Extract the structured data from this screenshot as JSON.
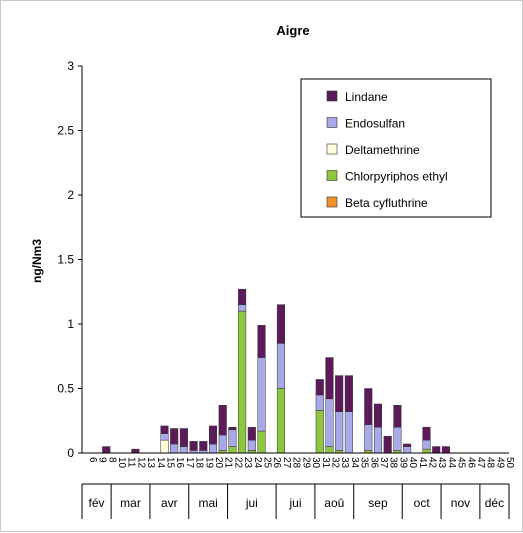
{
  "chart_data": {
    "type": "bar",
    "stacked": true,
    "title": "Aigre",
    "ylabel": "ng/Nm3",
    "xlabel": "",
    "ylim": [
      0,
      3
    ],
    "y_ticks": [
      "0",
      "0.5",
      "1",
      "1.5",
      "2",
      "2.5",
      "3"
    ],
    "grid": false,
    "legend_position": "top-right",
    "categories": [
      "6",
      "9",
      "8",
      "10",
      "11",
      "12",
      "13",
      "14",
      "15",
      "16",
      "17",
      "18",
      "19",
      "20",
      "21",
      "22",
      "23",
      "24",
      "25",
      "26",
      "27",
      "28",
      "29",
      "30",
      "31",
      "32",
      "33",
      "34",
      "35",
      "36",
      "37",
      "38",
      "39",
      "40",
      "41",
      "42",
      "43",
      "44",
      "45",
      "46",
      "47",
      "48",
      "49",
      "50"
    ],
    "months": [
      {
        "label": "fév",
        "start": 0,
        "end": 3
      },
      {
        "label": "mar",
        "start": 3,
        "end": 7
      },
      {
        "label": "avr",
        "start": 7,
        "end": 11
      },
      {
        "label": "mai",
        "start": 11,
        "end": 15
      },
      {
        "label": "jui",
        "start": 15,
        "end": 20
      },
      {
        "label": "jui",
        "start": 20,
        "end": 24
      },
      {
        "label": "aoû",
        "start": 24,
        "end": 28
      },
      {
        "label": "sep",
        "start": 28,
        "end": 33
      },
      {
        "label": "oct",
        "start": 33,
        "end": 37
      },
      {
        "label": "nov",
        "start": 37,
        "end": 41
      },
      {
        "label": "déc",
        "start": 41,
        "end": 44
      }
    ],
    "series": [
      {
        "name": "Beta cyfluthrine",
        "color": "#f0902a",
        "values": [
          0,
          0,
          0,
          0,
          0,
          0,
          0,
          0,
          0,
          0,
          0,
          0,
          0,
          0,
          0,
          0,
          0,
          0,
          0,
          0,
          0,
          0,
          0,
          0,
          0,
          0,
          0,
          0,
          0,
          0,
          0,
          0,
          0,
          0,
          0,
          0,
          0,
          0,
          0,
          0,
          0,
          0,
          0,
          0
        ]
      },
      {
        "name": "Chlorpyriphos ethyl",
        "color": "#8dc63f",
        "values": [
          0,
          0,
          0,
          0,
          0,
          0,
          0,
          0,
          0,
          0,
          0,
          0,
          0,
          0,
          0.02,
          0.05,
          1.1,
          0.02,
          0.17,
          0,
          0.5,
          0,
          0,
          0,
          0.33,
          0.05,
          0.02,
          0,
          0,
          0.02,
          0,
          0,
          0.02,
          0,
          0,
          0.03,
          0,
          0,
          0,
          0,
          0,
          0,
          0,
          0
        ]
      },
      {
        "name": "Deltamethrine",
        "color": "#ffffdd",
        "values": [
          0,
          0,
          0,
          0,
          0,
          0,
          0,
          0,
          0.1,
          0,
          0,
          0,
          0,
          0,
          0,
          0,
          0,
          0,
          0,
          0,
          0,
          0,
          0,
          0,
          0,
          0,
          0,
          0,
          0,
          0,
          0,
          0,
          0,
          0,
          0,
          0,
          0,
          0,
          0,
          0,
          0,
          0,
          0,
          0
        ]
      },
      {
        "name": "Endosulfan",
        "color": "#a7a9e8",
        "values": [
          0,
          0,
          0,
          0,
          0,
          0,
          0,
          0,
          0.05,
          0.07,
          0.05,
          0.02,
          0.02,
          0.07,
          0.12,
          0.13,
          0.05,
          0.08,
          0.57,
          0,
          0.35,
          0,
          0,
          0,
          0.12,
          0.37,
          0.3,
          0.32,
          0,
          0.2,
          0.2,
          0,
          0.18,
          0.05,
          0,
          0.07,
          0,
          0,
          0,
          0,
          0,
          0,
          0,
          0
        ]
      },
      {
        "name": "Lindane",
        "color": "#5c1a5a",
        "values": [
          0,
          0,
          0.05,
          0,
          0,
          0.03,
          0,
          0,
          0.06,
          0.12,
          0.14,
          0.07,
          0.07,
          0.14,
          0.23,
          0.02,
          0.12,
          0.1,
          0.25,
          0,
          0.3,
          0,
          0,
          0,
          0.12,
          0.32,
          0.28,
          0.28,
          0,
          0.28,
          0.18,
          0.13,
          0.17,
          0.02,
          0,
          0.1,
          0.05,
          0.05,
          0,
          0,
          0,
          0,
          0,
          0
        ]
      }
    ]
  }
}
